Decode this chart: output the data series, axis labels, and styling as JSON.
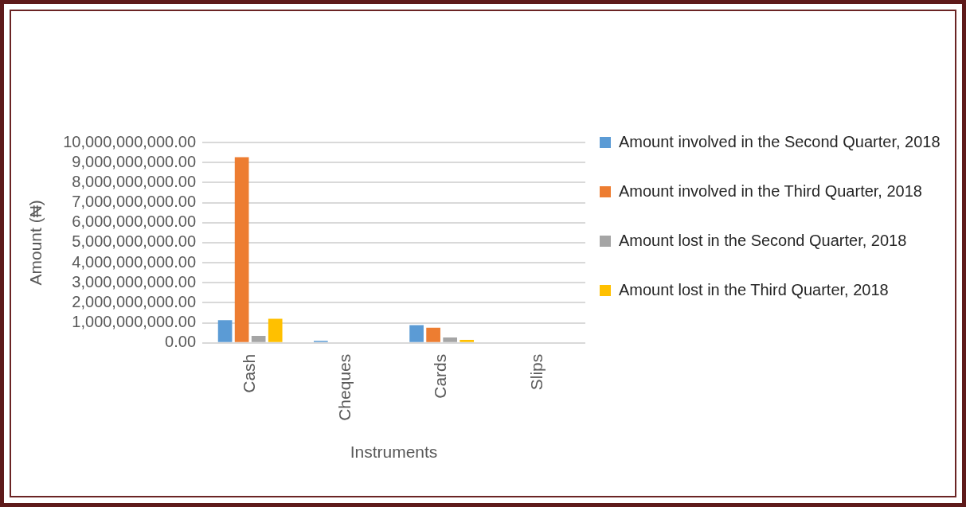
{
  "chart_data": {
    "type": "bar",
    "xlabel": "Instruments",
    "ylabel": "Amount (₦)",
    "categories": [
      "Cash",
      "Cheques",
      "Cards",
      "Slips"
    ],
    "series": [
      {
        "name": "Amount involved in the Second Quarter, 2018",
        "color": "#5b9bd5",
        "values": [
          1130000000,
          100000000,
          880000000,
          0
        ]
      },
      {
        "name": "Amount involved in the Third Quarter, 2018",
        "color": "#ed7d31",
        "values": [
          9270000000,
          0,
          750000000,
          0
        ]
      },
      {
        "name": "Amount lost in the Second Quarter, 2018",
        "color": "#a5a5a5",
        "values": [
          350000000,
          0,
          270000000,
          0
        ]
      },
      {
        "name": "Amount lost in the Third Quarter, 2018",
        "color": "#ffc000",
        "values": [
          1200000000,
          0,
          150000000,
          0
        ]
      }
    ],
    "ylim": [
      0,
      10000000000
    ],
    "yticks": [
      {
        "value": 0,
        "label": "0.00"
      },
      {
        "value": 1000000000,
        "label": "1,000,000,000.00"
      },
      {
        "value": 2000000000,
        "label": "2,000,000,000.00"
      },
      {
        "value": 3000000000,
        "label": "3,000,000,000.00"
      },
      {
        "value": 4000000000,
        "label": "4,000,000,000.00"
      },
      {
        "value": 5000000000,
        "label": "5,000,000,000.00"
      },
      {
        "value": 6000000000,
        "label": "6,000,000,000.00"
      },
      {
        "value": 7000000000,
        "label": "7,000,000,000.00"
      },
      {
        "value": 8000000000,
        "label": "8,000,000,000.00"
      },
      {
        "value": 9000000000,
        "label": "9,000,000,000.00"
      },
      {
        "value": 10000000000,
        "label": "10,000,000,000.00"
      }
    ],
    "grid": "y",
    "legend": "top right"
  }
}
